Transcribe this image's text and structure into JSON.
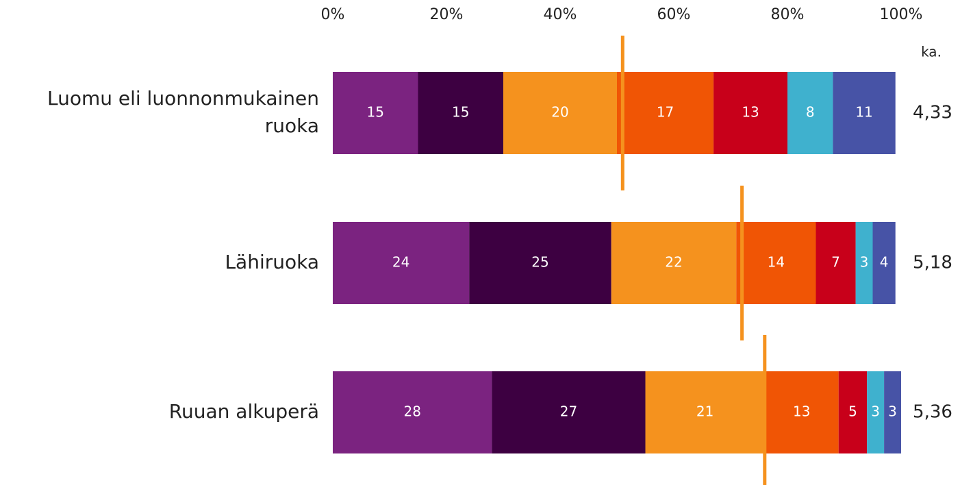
{
  "chart_data": {
    "type": "stacked_hbar",
    "categories": [
      "Luomu eli luonnonmukainen ruoka",
      "Lähiruoka",
      "Ruuan alkuperä"
    ],
    "series": [
      {
        "color": "#7b2380",
        "values": [
          15,
          24,
          28
        ]
      },
      {
        "color": "#3d0041",
        "values": [
          15,
          25,
          27
        ]
      },
      {
        "color": "#f5921e",
        "values": [
          20,
          22,
          21
        ]
      },
      {
        "color": "#f05505",
        "values": [
          17,
          14,
          13
        ]
      },
      {
        "color": "#c8001a",
        "values": [
          13,
          7,
          5
        ]
      },
      {
        "color": "#3fb1ce",
        "values": [
          8,
          3,
          3
        ]
      },
      {
        "color": "#4753a6",
        "values": [
          11,
          4,
          3
        ]
      }
    ],
    "xlim": [
      0,
      100
    ],
    "xticks": [
      {
        "value": 0,
        "label": "0%"
      },
      {
        "value": 20,
        "label": "20%"
      },
      {
        "value": 40,
        "label": "40%"
      },
      {
        "value": 60,
        "label": "60%"
      },
      {
        "value": 80,
        "label": "80%"
      },
      {
        "value": 100,
        "label": "100%"
      }
    ],
    "mean_header": "ka.",
    "means": [
      4.33,
      5.18,
      5.36
    ],
    "mean_labels": [
      "4,33",
      "5,18",
      "5,36"
    ],
    "mean_markers": [
      51,
      72,
      76
    ],
    "mean_marker_color": "#f5921e",
    "value_label_color": "#ffffff"
  }
}
